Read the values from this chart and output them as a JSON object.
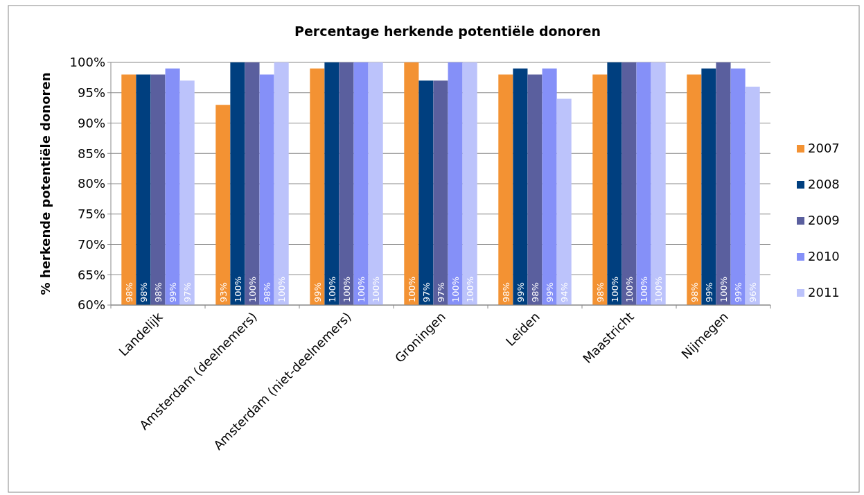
{
  "chart_data": {
    "type": "bar",
    "title": "Percentage herkende potentiële donoren",
    "ylabel": "% herkende potentiële donoren",
    "categories": [
      "Landelijk",
      "Amsterdam (deelnemers)",
      "Amsterdam (niet-deelnemers)",
      "Groningen",
      "Leiden",
      "Maastricht",
      "Nijmegen"
    ],
    "series": [
      {
        "name": "2007",
        "color": "#f39233",
        "values": [
          98,
          93,
          99,
          100,
          98,
          98,
          98
        ],
        "value_labels": [
          "98%",
          "93%",
          "99%",
          "100%",
          "98%",
          "98%",
          "98%"
        ]
      },
      {
        "name": "2008",
        "color": "#003f7f",
        "values": [
          98,
          100,
          100,
          97,
          99,
          100,
          99
        ],
        "value_labels": [
          "98%",
          "100%",
          "100%",
          "97%",
          "99%",
          "100%",
          "99%"
        ]
      },
      {
        "name": "2009",
        "color": "#5a5f9e",
        "values": [
          98,
          100,
          100,
          97,
          98,
          100,
          100
        ],
        "value_labels": [
          "98%",
          "100%",
          "100%",
          "97%",
          "98%",
          "100%",
          "100%"
        ]
      },
      {
        "name": "2010",
        "color": "#8590f8",
        "values": [
          99,
          98,
          100,
          100,
          99,
          100,
          99
        ],
        "value_labels": [
          "99%",
          "98%",
          "100%",
          "100%",
          "99%",
          "100%",
          "99%"
        ]
      },
      {
        "name": "2011",
        "color": "#bcc3fb",
        "values": [
          97,
          100,
          100,
          100,
          94,
          100,
          96
        ],
        "value_labels": [
          "97%",
          "100%",
          "100%",
          "100%",
          "94%",
          "100%",
          "96%"
        ]
      }
    ],
    "ylim": [
      60,
      100
    ],
    "yticks": [
      {
        "value": 60,
        "label": "60%"
      },
      {
        "value": 65,
        "label": "65%"
      },
      {
        "value": 70,
        "label": "70%"
      },
      {
        "value": 75,
        "label": "75%"
      },
      {
        "value": 80,
        "label": "80%"
      },
      {
        "value": 85,
        "label": "85%"
      },
      {
        "value": 90,
        "label": "90%"
      },
      {
        "value": 95,
        "label": "95%"
      },
      {
        "value": 100,
        "label": "100%"
      }
    ],
    "grid": "y",
    "legend": "right"
  }
}
